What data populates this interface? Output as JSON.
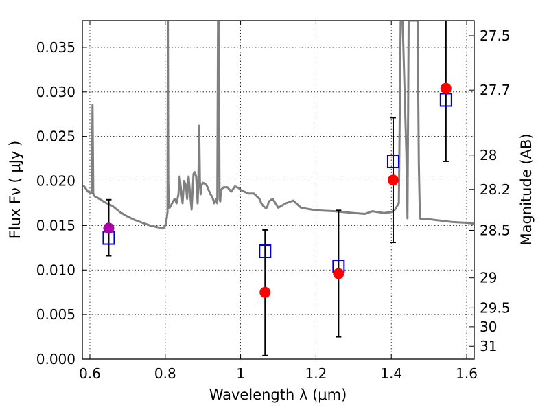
{
  "chart_data": {
    "type": "scatter",
    "title": "",
    "xlabel": "Wavelength  λ (μm)",
    "ylabel": "Flux  Fν  ( μJy )",
    "y2label": "Magnitude (AB)",
    "xlim": [
      0.58,
      1.62
    ],
    "ylim": [
      0.0,
      0.038
    ],
    "grid": true,
    "xticks": [
      0.6,
      0.8,
      1.0,
      1.2,
      1.4,
      1.6
    ],
    "xtick_labels": [
      "0.6",
      "0.8",
      "1",
      "1.2",
      "1.4",
      "1.6"
    ],
    "yticks": [
      0.0,
      0.005,
      0.01,
      0.015,
      0.02,
      0.025,
      0.03,
      0.035
    ],
    "ytick_labels": [
      "0.000",
      "0.005",
      "0.010",
      "0.015",
      "0.020",
      "0.025",
      "0.030",
      "0.035"
    ],
    "y2ticks": [
      {
        "label": "27.5",
        "mag": 27.5
      },
      {
        "label": "27.7",
        "mag": 27.7
      },
      {
        "label": "28",
        "mag": 28.0
      },
      {
        "label": "28.2",
        "mag": 28.2
      },
      {
        "label": "28.5",
        "mag": 28.5
      },
      {
        "label": "29",
        "mag": 29.0
      },
      {
        "label": "29.5",
        "mag": 29.5
      },
      {
        "label": "30",
        "mag": 30.0
      },
      {
        "label": "31",
        "mag": 31.0
      }
    ],
    "observed": {
      "x": [
        0.65,
        1.065,
        1.26,
        1.405,
        1.545
      ],
      "y": [
        0.0147,
        0.0075,
        0.0096,
        0.0201,
        0.0304
      ],
      "err_low": [
        0.0116,
        0.0004,
        0.0025,
        0.0131,
        0.0222
      ],
      "err_high": [
        0.0179,
        0.0145,
        0.0167,
        0.0271,
        0.038
      ],
      "colors": [
        "#aa00aa",
        "#ff0000",
        "#ff0000",
        "#ff0000",
        "#ff0000"
      ]
    },
    "model_points": {
      "x": [
        0.65,
        1.065,
        1.26,
        1.405,
        1.545
      ],
      "y": [
        0.0136,
        0.0121,
        0.0104,
        0.0222,
        0.0291
      ],
      "color": "#0000cc"
    },
    "sed_line": {
      "color": "#808080",
      "x": [
        0.583,
        0.595,
        0.605,
        0.607,
        0.609,
        0.612,
        0.625,
        0.64,
        0.66,
        0.68,
        0.7,
        0.72,
        0.74,
        0.76,
        0.78,
        0.795,
        0.8,
        0.803,
        0.806,
        0.807,
        0.808,
        0.81,
        0.812,
        0.818,
        0.825,
        0.83,
        0.835,
        0.838,
        0.842,
        0.846,
        0.85,
        0.855,
        0.858,
        0.862,
        0.866,
        0.87,
        0.875,
        0.878,
        0.882,
        0.886,
        0.888,
        0.89,
        0.892,
        0.894,
        0.896,
        0.9,
        0.905,
        0.91,
        0.915,
        0.92,
        0.925,
        0.93,
        0.935,
        0.938,
        0.94,
        0.942,
        0.944,
        0.946,
        0.948,
        0.955,
        0.965,
        0.975,
        0.985,
        0.995,
        1.0,
        1.01,
        1.02,
        1.035,
        1.05,
        1.055,
        1.06,
        1.065,
        1.07,
        1.075,
        1.085,
        1.1,
        1.12,
        1.14,
        1.16,
        1.2,
        1.25,
        1.3,
        1.33,
        1.35,
        1.38,
        1.4,
        1.41,
        1.42,
        1.425,
        1.43,
        1.44,
        1.443,
        1.446,
        1.449,
        1.452,
        1.455,
        1.47,
        1.473,
        1.476,
        1.48,
        1.5,
        1.54,
        1.56,
        1.6,
        1.62
      ],
      "y": [
        0.0195,
        0.0188,
        0.0186,
        0.0285,
        0.0186,
        0.0183,
        0.018,
        0.0176,
        0.0172,
        0.0165,
        0.016,
        0.0156,
        0.0153,
        0.015,
        0.0148,
        0.0147,
        0.015,
        0.0155,
        0.0165,
        0.038,
        0.02,
        0.017,
        0.017,
        0.0175,
        0.018,
        0.0175,
        0.0185,
        0.0205,
        0.019,
        0.0175,
        0.02,
        0.0195,
        0.018,
        0.0205,
        0.0185,
        0.0168,
        0.0208,
        0.021,
        0.0205,
        0.0175,
        0.02,
        0.0262,
        0.02,
        0.0185,
        0.0195,
        0.0198,
        0.0197,
        0.0195,
        0.019,
        0.0185,
        0.0182,
        0.0175,
        0.018,
        0.0175,
        0.038,
        0.038,
        0.018,
        0.0177,
        0.019,
        0.0193,
        0.0193,
        0.0188,
        0.0194,
        0.0192,
        0.019,
        0.0188,
        0.0186,
        0.0186,
        0.018,
        0.0175,
        0.0172,
        0.017,
        0.017,
        0.0177,
        0.018,
        0.017,
        0.0175,
        0.0178,
        0.017,
        0.0167,
        0.0166,
        0.0164,
        0.0163,
        0.0166,
        0.0164,
        0.0165,
        0.0168,
        0.0175,
        0.038,
        0.038,
        0.023,
        0.0158,
        0.038,
        0.038,
        0.038,
        0.038,
        0.038,
        0.022,
        0.0158,
        0.0157,
        0.0157,
        0.0155,
        0.0154,
        0.0153,
        0.0152
      ]
    }
  }
}
